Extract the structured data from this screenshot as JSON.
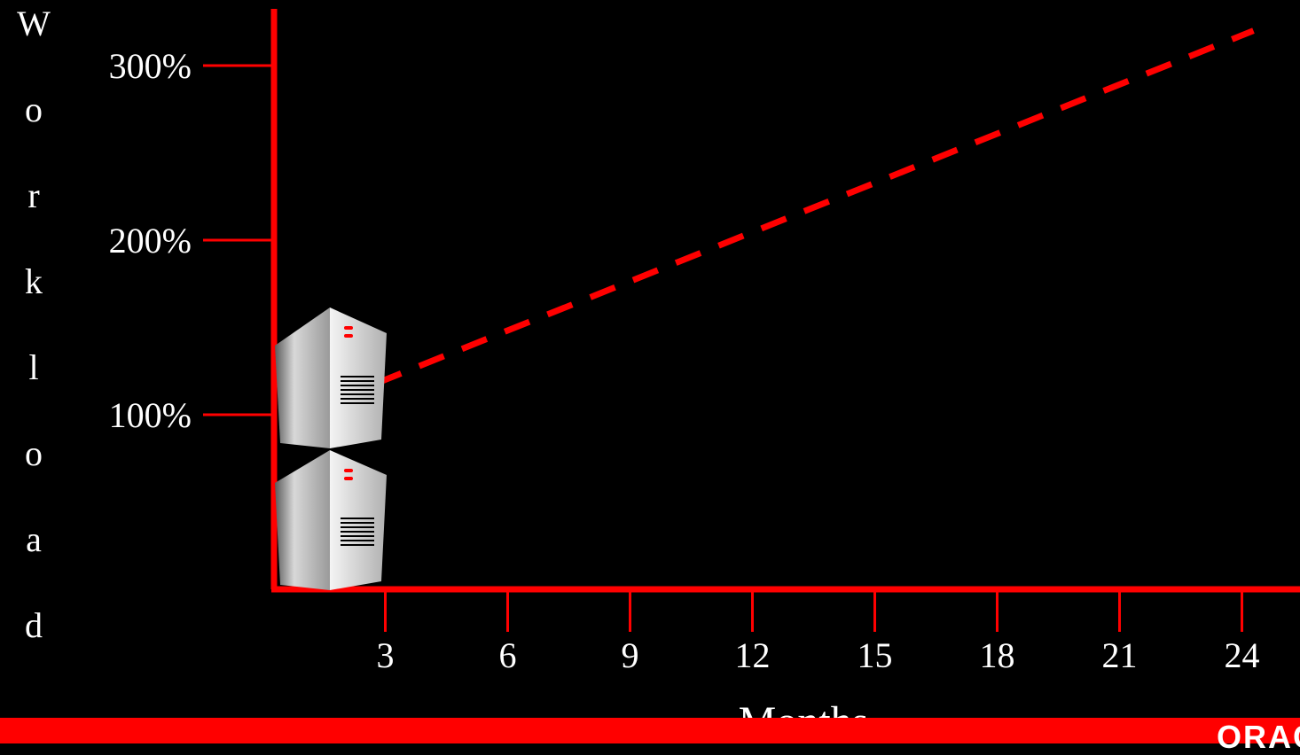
{
  "chart_data": {
    "type": "line",
    "xlabel": "Months",
    "ylabel": "Workload",
    "x_ticks": [
      3,
      6,
      9,
      12,
      15,
      18,
      21,
      24
    ],
    "y_ticks": [
      100,
      200,
      300
    ],
    "y_tick_labels": [
      "100%",
      "200%",
      "300%"
    ],
    "xlim": [
      0,
      24
    ],
    "ylim": [
      0,
      300
    ],
    "grid": false,
    "series": [
      {
        "style": "dashed",
        "color": "#ff0000",
        "x": [
          2.5,
          24
        ],
        "y": [
          118,
          320
        ]
      }
    ],
    "annotations": [
      "server-stack-icon"
    ]
  },
  "colors": {
    "axis": "#ff0000",
    "background": "#000000",
    "text": "#ffffff",
    "footer": "#ff0000"
  },
  "footer": {
    "logo_text": "ORACLE"
  }
}
